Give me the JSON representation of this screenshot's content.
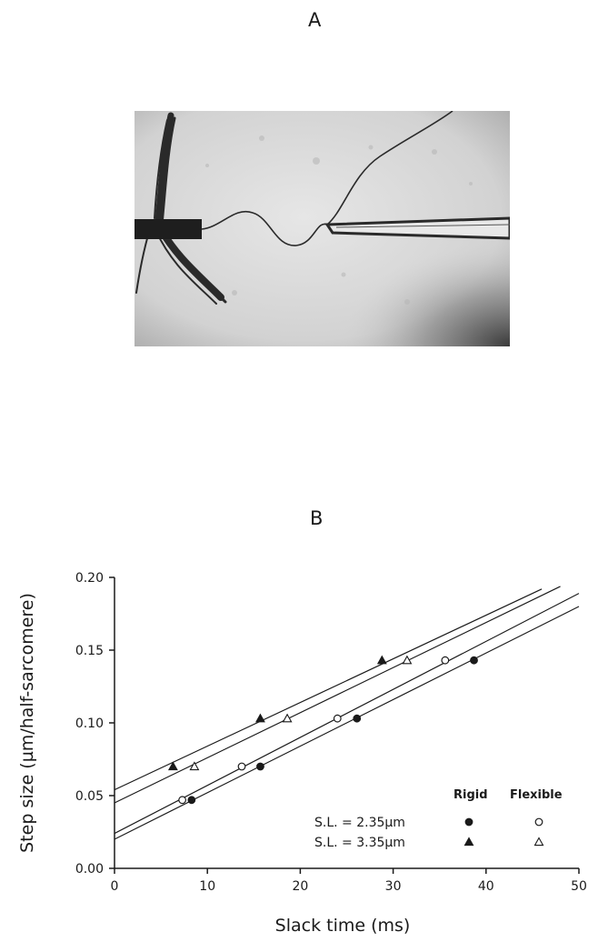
{
  "figure": {
    "panel_a_label": "A",
    "panel_b_label": "B",
    "photo": {
      "description_icon": "micrograph-fiber-preparation"
    }
  },
  "chart_data": {
    "type": "scatter",
    "xlabel": "Slack time (ms)",
    "ylabel": "Step size (µm/half-sarcomere)",
    "xlim": [
      0,
      50
    ],
    "ylim": [
      0,
      0.2
    ],
    "xticks": [
      0,
      10,
      20,
      30,
      40,
      50
    ],
    "yticks": [
      0.0,
      0.05,
      0.1,
      0.15,
      0.2
    ],
    "xtick_labels": [
      "0",
      "10",
      "20",
      "30",
      "40",
      "50"
    ],
    "ytick_labels": [
      "0.00",
      "0.05",
      "0.10",
      "0.15",
      "0.20"
    ],
    "grid": false,
    "legend": {
      "placement": "bottom-right",
      "col_headers": [
        "Rigid",
        "Flexible"
      ],
      "rows": [
        {
          "label": "S.L. = 2.35µm",
          "rigid_marker": "filled-circle",
          "flexible_marker": "open-circle"
        },
        {
          "label": "S.L. = 3.35µm",
          "rigid_marker": "filled-triangle",
          "flexible_marker": "open-triangle"
        }
      ]
    },
    "series": [
      {
        "marker": "filled-triangle",
        "x": [
          6.3,
          15.7,
          28.8
        ],
        "y": [
          0.07,
          0.103,
          0.143
        ],
        "fit": {
          "intercept": 0.054,
          "slope": 0.003,
          "x_end": 46
        }
      },
      {
        "marker": "open-triangle",
        "x": [
          8.6,
          18.6,
          31.5
        ],
        "y": [
          0.07,
          0.103,
          0.143
        ],
        "fit": {
          "intercept": 0.045,
          "slope": 0.0031,
          "x_end": 48
        }
      },
      {
        "marker": "open-circle",
        "x": [
          7.3,
          13.7,
          24.0,
          35.6
        ],
        "y": [
          0.047,
          0.07,
          0.103,
          0.143
        ],
        "fit": {
          "intercept": 0.024,
          "slope": 0.0033,
          "x_end": 50
        }
      },
      {
        "marker": "filled-circle",
        "x": [
          8.3,
          15.7,
          26.1,
          38.7
        ],
        "y": [
          0.047,
          0.07,
          0.103,
          0.143
        ],
        "fit": {
          "intercept": 0.02,
          "slope": 0.0032,
          "x_end": 50
        }
      }
    ]
  }
}
